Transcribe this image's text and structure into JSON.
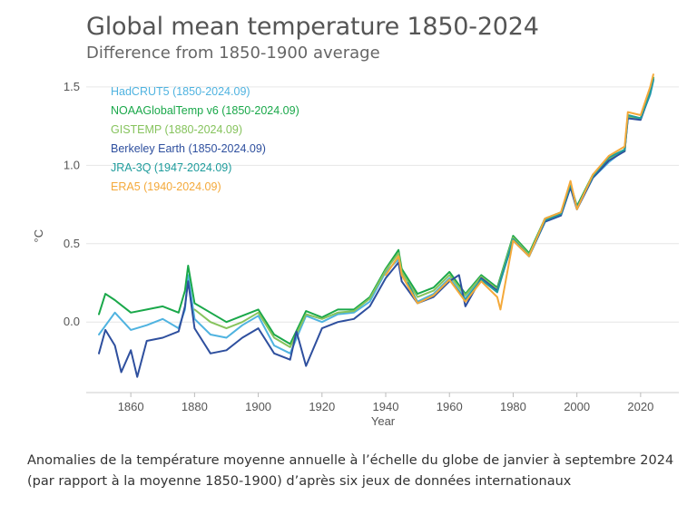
{
  "caption": "Anomalies de la température moyenne annuelle à l’échelle du globe de janvier à septembre 2024 (par rapport à la moyenne 1850-1900) d’après six jeux de données internationaux",
  "chart_data": {
    "type": "line",
    "title": "Global mean temperature 1850-2024",
    "subtitle": "Difference from 1850-1900 average",
    "xlabel": "Year",
    "ylabel": "°C",
    "xlim": [
      1846,
      2032
    ],
    "ylim": [
      -0.45,
      1.65
    ],
    "xticks": [
      1860,
      1880,
      1900,
      1920,
      1940,
      1960,
      1980,
      2000,
      2020
    ],
    "yticks": [
      0.0,
      0.5,
      1.0,
      1.5
    ],
    "ytick_labels": [
      "0.0",
      "0.5",
      "1.0",
      "1.5"
    ],
    "grid": "horizontal",
    "legend_position": "top-left",
    "series": [
      {
        "name": "HadCRUT5 (1850-2024.09)",
        "color": "#4fb3e0",
        "x": [
          1850,
          1855,
          1860,
          1865,
          1870,
          1875,
          1877,
          1878,
          1880,
          1885,
          1890,
          1895,
          1900,
          1905,
          1910,
          1915,
          1920,
          1925,
          1930,
          1935,
          1940,
          1944,
          1945,
          1950,
          1955,
          1960,
          1965,
          1970,
          1975,
          1980,
          1985,
          1990,
          1995,
          1998,
          2000,
          2005,
          2010,
          2015,
          2016,
          2020,
          2023,
          2024
        ],
        "y": [
          -0.08,
          0.06,
          -0.05,
          -0.02,
          0.02,
          -0.04,
          0.08,
          0.3,
          0.02,
          -0.08,
          -0.1,
          -0.02,
          0.04,
          -0.15,
          -0.2,
          0.04,
          0.0,
          0.05,
          0.06,
          0.13,
          0.32,
          0.4,
          0.3,
          0.13,
          0.18,
          0.28,
          0.15,
          0.28,
          0.2,
          0.52,
          0.42,
          0.64,
          0.68,
          0.86,
          0.72,
          0.92,
          1.02,
          1.1,
          1.3,
          1.3,
          1.45,
          1.54
        ]
      },
      {
        "name": "NOAAGlobalTemp v6 (1850-2024.09)",
        "color": "#1aa84a",
        "x": [
          1850,
          1852,
          1855,
          1860,
          1865,
          1870,
          1875,
          1877,
          1878,
          1880,
          1885,
          1890,
          1895,
          1900,
          1905,
          1910,
          1915,
          1920,
          1925,
          1930,
          1935,
          1940,
          1944,
          1945,
          1950,
          1955,
          1960,
          1965,
          1970,
          1975,
          1980,
          1985,
          1990,
          1995,
          1998,
          2000,
          2005,
          2010,
          2015,
          2016,
          2020,
          2023,
          2024
        ],
        "y": [
          0.05,
          0.18,
          0.14,
          0.06,
          0.08,
          0.1,
          0.06,
          0.2,
          0.36,
          0.12,
          0.06,
          0.0,
          0.04,
          0.08,
          -0.08,
          -0.14,
          0.07,
          0.03,
          0.08,
          0.08,
          0.16,
          0.34,
          0.46,
          0.34,
          0.18,
          0.22,
          0.32,
          0.18,
          0.3,
          0.22,
          0.55,
          0.44,
          0.66,
          0.7,
          0.88,
          0.74,
          0.94,
          1.05,
          1.1,
          1.32,
          1.3,
          1.48,
          1.56
        ]
      },
      {
        "name": "GISTEMP (1880-2024.09)",
        "color": "#86c35d",
        "x": [
          1880,
          1885,
          1890,
          1895,
          1900,
          1905,
          1910,
          1915,
          1920,
          1925,
          1930,
          1935,
          1940,
          1944,
          1945,
          1950,
          1955,
          1960,
          1965,
          1970,
          1975,
          1980,
          1985,
          1990,
          1995,
          1998,
          2000,
          2005,
          2010,
          2015,
          2016,
          2020,
          2023,
          2024
        ],
        "y": [
          0.08,
          0.0,
          -0.04,
          0.0,
          0.06,
          -0.1,
          -0.16,
          0.05,
          0.02,
          0.06,
          0.07,
          0.15,
          0.33,
          0.44,
          0.32,
          0.16,
          0.2,
          0.3,
          0.17,
          0.29,
          0.21,
          0.54,
          0.43,
          0.65,
          0.69,
          0.87,
          0.73,
          0.93,
          1.04,
          1.09,
          1.31,
          1.3,
          1.47,
          1.55
        ]
      },
      {
        "name": "Berkeley Earth (1850-2024.09)",
        "color": "#2e4f9e",
        "x": [
          1850,
          1852,
          1855,
          1857,
          1860,
          1862,
          1865,
          1870,
          1875,
          1877,
          1878,
          1880,
          1885,
          1890,
          1895,
          1900,
          1905,
          1910,
          1912,
          1915,
          1920,
          1925,
          1930,
          1935,
          1940,
          1944,
          1945,
          1950,
          1955,
          1960,
          1963,
          1965,
          1970,
          1975,
          1980,
          1985,
          1990,
          1995,
          1998,
          2000,
          2005,
          2010,
          2015,
          2016,
          2020,
          2023,
          2024
        ],
        "y": [
          -0.2,
          -0.05,
          -0.15,
          -0.32,
          -0.18,
          -0.35,
          -0.12,
          -0.1,
          -0.06,
          0.1,
          0.26,
          -0.04,
          -0.2,
          -0.18,
          -0.1,
          -0.04,
          -0.2,
          -0.24,
          -0.06,
          -0.28,
          -0.04,
          0.0,
          0.02,
          0.1,
          0.28,
          0.38,
          0.26,
          0.12,
          0.16,
          0.26,
          0.3,
          0.1,
          0.28,
          0.2,
          0.52,
          0.42,
          0.64,
          0.68,
          0.86,
          0.72,
          0.92,
          1.03,
          1.09,
          1.3,
          1.29,
          1.46,
          1.55
        ]
      },
      {
        "name": "JRA-3Q (1947-2024.09)",
        "color": "#1f9c9c",
        "x": [
          1947,
          1950,
          1955,
          1960,
          1965,
          1970,
          1975,
          1980,
          1985,
          1990,
          1995,
          1998,
          2000,
          2005,
          2010,
          2015,
          2016,
          2020,
          2023,
          2024
        ],
        "y": [
          0.25,
          0.12,
          0.17,
          0.27,
          0.14,
          0.27,
          0.19,
          0.53,
          0.42,
          0.65,
          0.69,
          0.88,
          0.73,
          0.93,
          1.05,
          1.1,
          1.32,
          1.3,
          1.46,
          1.55
        ]
      },
      {
        "name": "ERA5 (1940-2024.09)",
        "color": "#f4a93a",
        "x": [
          1940,
          1944,
          1945,
          1950,
          1955,
          1960,
          1965,
          1970,
          1975,
          1976,
          1980,
          1985,
          1990,
          1995,
          1998,
          2000,
          2005,
          2010,
          2015,
          2016,
          2020,
          2023,
          2024
        ],
        "y": [
          0.3,
          0.42,
          0.3,
          0.12,
          0.17,
          0.27,
          0.13,
          0.26,
          0.16,
          0.08,
          0.52,
          0.42,
          0.66,
          0.7,
          0.9,
          0.72,
          0.94,
          1.06,
          1.12,
          1.34,
          1.32,
          1.5,
          1.58
        ]
      }
    ]
  }
}
